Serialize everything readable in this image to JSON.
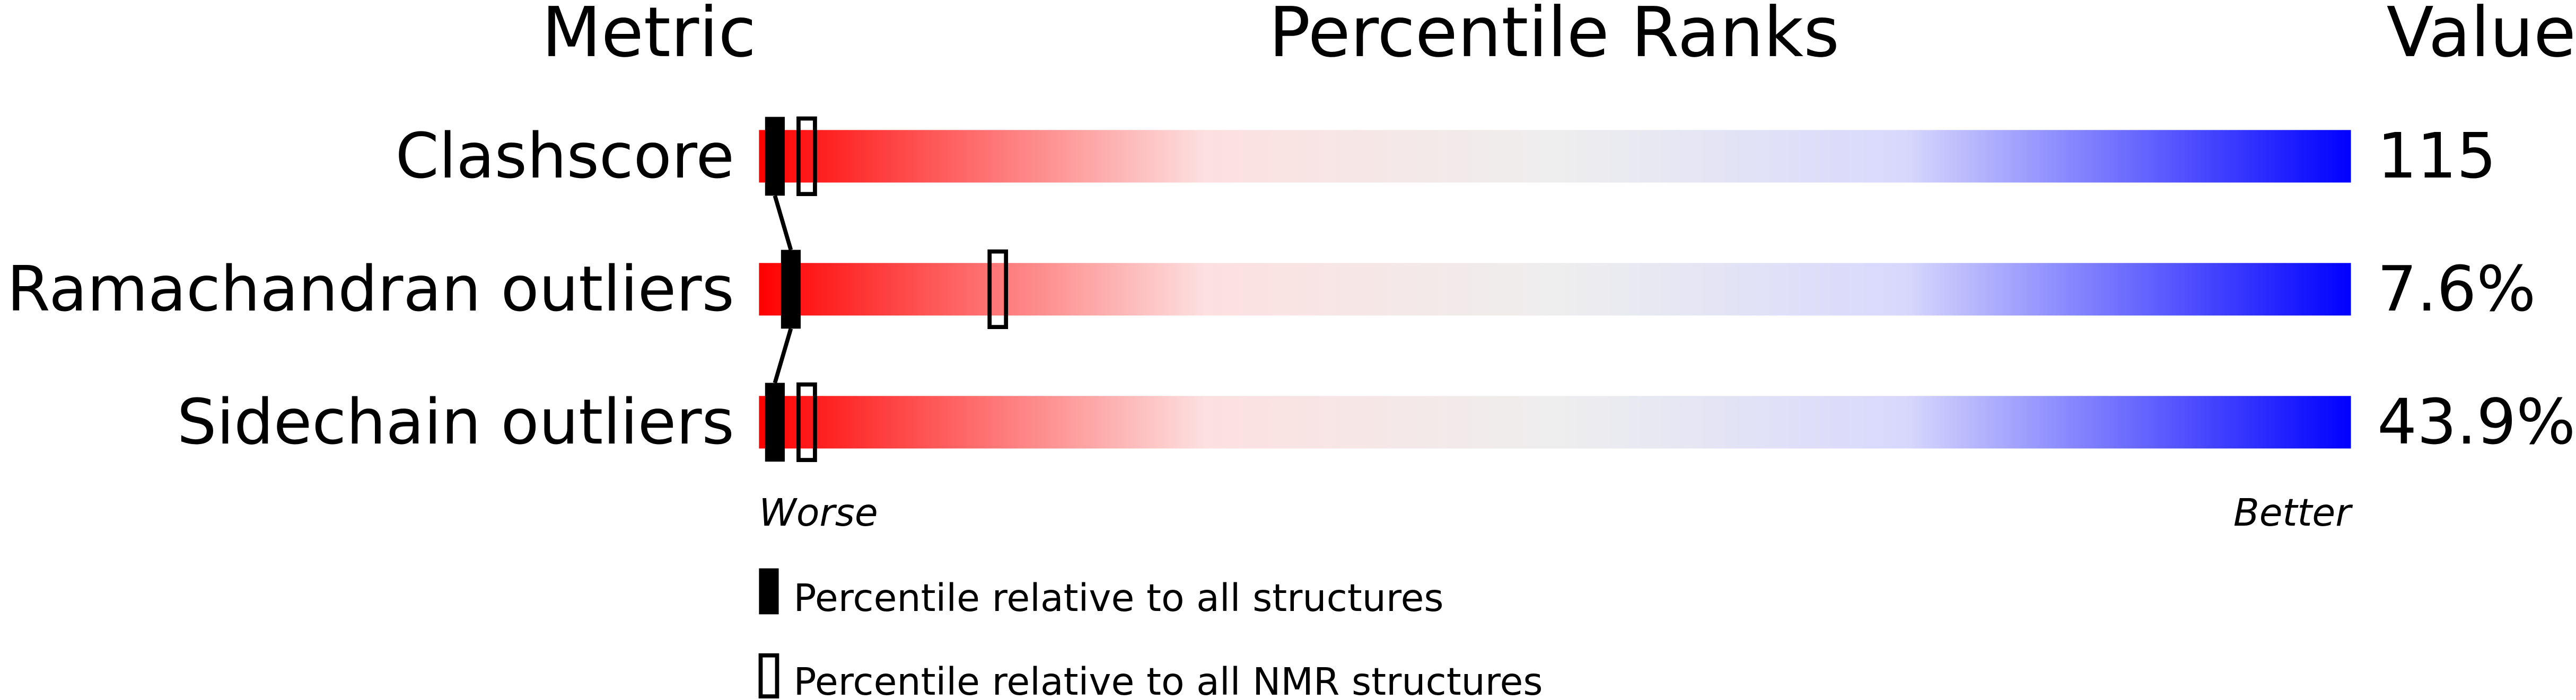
{
  "chart_data": {
    "type": "bar",
    "headers": {
      "metric": "Metric",
      "percentile": "Percentile Ranks",
      "value": "Value"
    },
    "xlim": [
      0,
      100
    ],
    "axis_labels": {
      "left": "Worse",
      "right": "Better"
    },
    "gradient_colors": [
      "#ff0000",
      "#eeeeee",
      "#0000ff"
    ],
    "rows": [
      {
        "metric": "Clashscore",
        "value": "115",
        "percentile_all": 1,
        "percentile_nmr": 3
      },
      {
        "metric": "Ramachandran outliers",
        "value": "7.6%",
        "percentile_all": 2,
        "percentile_nmr": 15
      },
      {
        "metric": "Sidechain outliers",
        "value": "43.9%",
        "percentile_all": 1,
        "percentile_nmr": 3
      }
    ],
    "legend": [
      {
        "marker": "filled",
        "label": "Percentile relative to all structures"
      },
      {
        "marker": "open",
        "label": "Percentile relative to all NMR structures"
      }
    ]
  }
}
